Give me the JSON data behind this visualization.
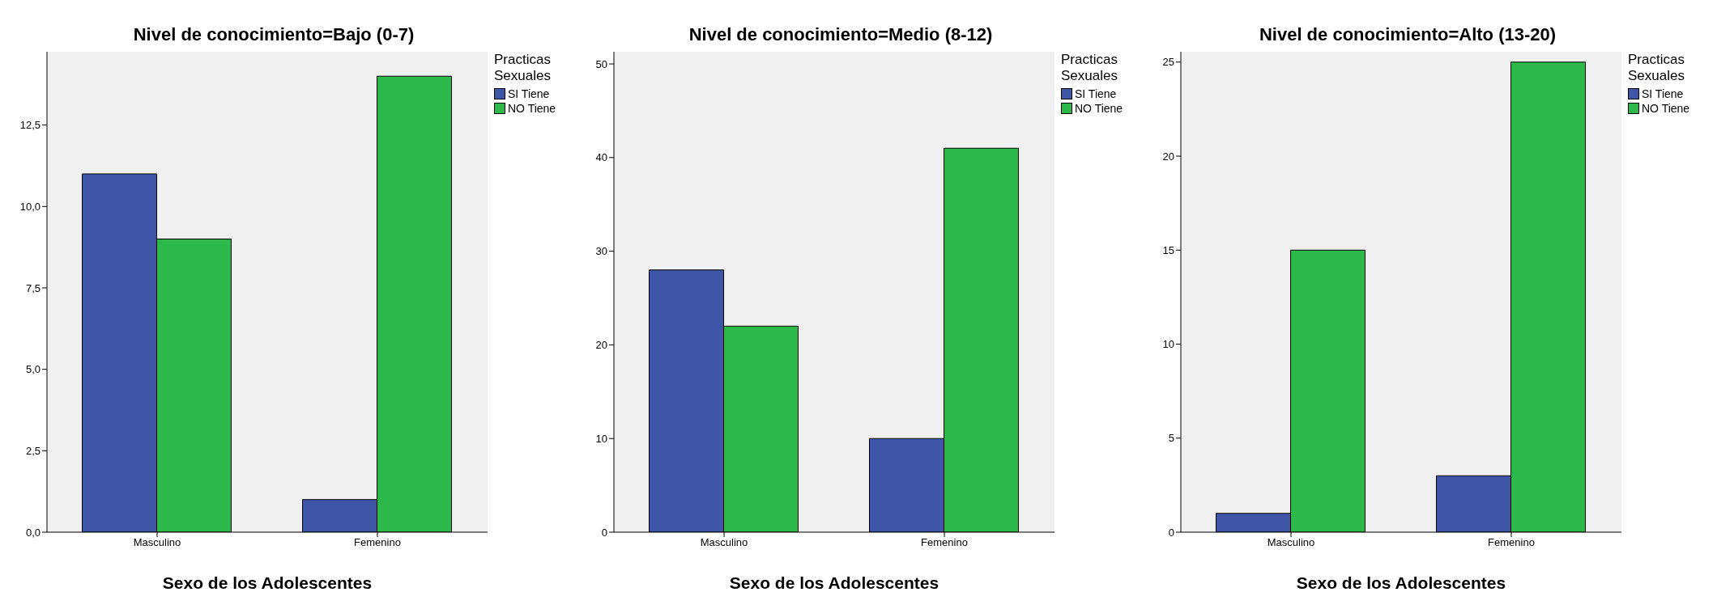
{
  "chart_data": [
    {
      "type": "bar",
      "title": "Nivel de conocimiento=Bajo (0-7)",
      "xlabel": "Sexo de los Adolescentes",
      "legend_title": "Practicas Sexuales",
      "categories": [
        "Masculino",
        "Femenino"
      ],
      "series": [
        {
          "name": "SI Tiene",
          "color": "#3f56a8",
          "values": [
            11,
            1
          ]
        },
        {
          "name": "NO Tiene",
          "color": "#2db84a",
          "values": [
            9,
            14
          ]
        }
      ],
      "ylim": [
        0,
        14.75
      ],
      "yticks": [
        {
          "value": 0,
          "label": "0,0"
        },
        {
          "value": 2.5,
          "label": "2,5"
        },
        {
          "value": 5,
          "label": "5,0"
        },
        {
          "value": 7.5,
          "label": "7,5"
        },
        {
          "value": 10,
          "label": "10,0"
        },
        {
          "value": 12.5,
          "label": "12,5"
        }
      ],
      "grid": false,
      "legend": "top right"
    },
    {
      "type": "bar",
      "title": "Nivel de conocimiento=Medio (8-12)",
      "xlabel": "Sexo de los Adolescentes",
      "legend_title": "Practicas Sexuales",
      "categories": [
        "Masculino",
        "Femenino"
      ],
      "series": [
        {
          "name": "SI Tiene",
          "color": "#3f56a8",
          "values": [
            28,
            10
          ]
        },
        {
          "name": "NO Tiene",
          "color": "#2db84a",
          "values": [
            22,
            41
          ]
        }
      ],
      "ylim": [
        0,
        51.3
      ],
      "yticks": [
        0,
        10,
        20,
        30,
        40,
        50
      ],
      "grid": false,
      "legend": "top right"
    },
    {
      "type": "bar",
      "title": "Nivel de conocimiento=Alto (13-20)",
      "xlabel": "Sexo de los Adolescentes",
      "legend_title": "Practicas Sexuales",
      "categories": [
        "Masculino",
        "Femenino"
      ],
      "series": [
        {
          "name": "SI Tiene",
          "color": "#3f56a8",
          "values": [
            1,
            3
          ]
        },
        {
          "name": "NO Tiene",
          "color": "#2db84a",
          "values": [
            15,
            25
          ]
        }
      ],
      "ylim": [
        0,
        25.55
      ],
      "yticks": [
        0,
        5,
        10,
        15,
        20,
        25
      ],
      "grid": false,
      "legend": "top right"
    }
  ]
}
